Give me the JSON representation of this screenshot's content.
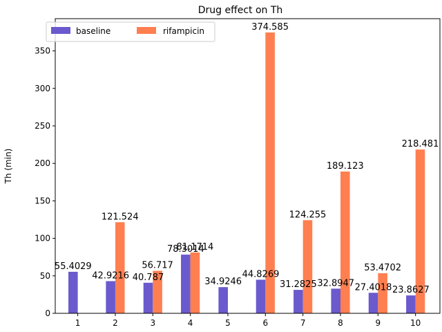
{
  "chart_data": {
    "type": "bar",
    "title": "Drug effect on Th",
    "xlabel": "",
    "ylabel": "Th (min)",
    "categories": [
      "1",
      "2",
      "3",
      "4",
      "5",
      "6",
      "7",
      "8",
      "9",
      "10"
    ],
    "series": [
      {
        "name": "baseline",
        "color": "#6a5acd",
        "values": [
          55.4029,
          42.9216,
          40.787,
          78.3014,
          34.9246,
          44.8269,
          31.2825,
          32.8947,
          27.4018,
          23.8627
        ],
        "labels": [
          "55.4029",
          "42.9216",
          "40.787",
          "78.3014",
          "34.9246",
          "44.8269",
          "31.2825",
          "32.8947",
          "27.4018",
          "23.8627"
        ]
      },
      {
        "name": "rifampicin",
        "color": "#ff7f50",
        "values": [
          null,
          121.524,
          56.717,
          81.1714,
          null,
          374.585,
          124.255,
          189.123,
          53.4702,
          218.481
        ],
        "labels": [
          null,
          "121.524",
          "56.717",
          "81.1714",
          null,
          "374.585",
          "124.255",
          "189.123",
          "53.4702",
          "218.481"
        ]
      }
    ],
    "ylim": [
      0,
      393
    ],
    "yticks": [
      "0",
      "50",
      "100",
      "150",
      "200",
      "250",
      "300",
      "350"
    ],
    "ytick_values": [
      0,
      50,
      100,
      150,
      200,
      250,
      300,
      350
    ],
    "grid": false,
    "legend_position": "top-left"
  }
}
